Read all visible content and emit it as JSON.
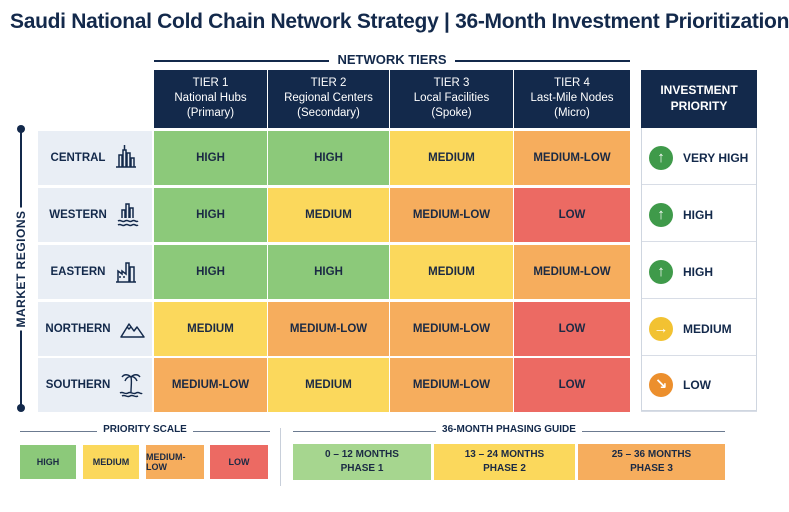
{
  "title": "Saudi National Cold Chain Network Strategy | 36-Month Investment Prioritization",
  "network_tiers_label": "NETWORK TIERS",
  "market_regions_label": "MARKET REGIONS",
  "investment_priority_label": [
    "INVESTMENT",
    "PRIORITY"
  ],
  "tiers": [
    {
      "tier": "TIER 1",
      "name": "National Hubs",
      "type": "(Primary)"
    },
    {
      "tier": "TIER 2",
      "name": "Regional Centers",
      "type": "(Secondary)"
    },
    {
      "tier": "TIER 3",
      "name": "Local Facilities",
      "type": "(Spoke)"
    },
    {
      "tier": "TIER 4",
      "name": "Last-Mile Nodes",
      "type": "(Micro)"
    }
  ],
  "regions": [
    {
      "name": "CENTRAL",
      "icon": "city-skyline-icon",
      "cells": [
        "HIGH",
        "HIGH",
        "MEDIUM",
        "MEDIUM-LOW"
      ],
      "priority": "VERY HIGH",
      "arrow": "up"
    },
    {
      "name": "WESTERN",
      "icon": "coastal-city-icon",
      "cells": [
        "HIGH",
        "MEDIUM",
        "MEDIUM-LOW",
        "LOW"
      ],
      "priority": "HIGH",
      "arrow": "up"
    },
    {
      "name": "EASTERN",
      "icon": "industrial-city-icon",
      "cells": [
        "HIGH",
        "HIGH",
        "MEDIUM",
        "MEDIUM-LOW"
      ],
      "priority": "HIGH",
      "arrow": "up"
    },
    {
      "name": "NORTHERN",
      "icon": "mountains-icon",
      "cells": [
        "MEDIUM",
        "MEDIUM-LOW",
        "MEDIUM-LOW",
        "LOW"
      ],
      "priority": "MEDIUM",
      "arrow": "right"
    },
    {
      "name": "SOUTHERN",
      "icon": "palm-tree-icon",
      "cells": [
        "MEDIUM-LOW",
        "MEDIUM",
        "MEDIUM-LOW",
        "LOW"
      ],
      "priority": "LOW",
      "arrow": "down-right"
    }
  ],
  "colors": {
    "HIGH": "#8cc97a",
    "MEDIUM": "#fbd85c",
    "MEDIUM-LOW": "#f6ad5d",
    "LOW": "#ec6a63",
    "navy": "#13294b",
    "arrow_up": "#3f9a4a",
    "arrow_right": "#f2c232",
    "arrow_down": "#ec8f2d"
  },
  "priority_scale": {
    "title": "PRIORITY SCALE",
    "items": [
      "HIGH",
      "MEDIUM",
      "MEDIUM-LOW",
      "LOW"
    ]
  },
  "phasing": {
    "title": "36-MONTH PHASING GUIDE",
    "phases": [
      {
        "months": "0 – 12 MONTHS",
        "phase": "PHASE 1",
        "color": "#a6d68f"
      },
      {
        "months": "13 – 24 MONTHS",
        "phase": "PHASE 2",
        "color": "#fbd85c"
      },
      {
        "months": "25 – 36 MONTHS",
        "phase": "PHASE 3",
        "color": "#f6ad5d"
      }
    ]
  }
}
